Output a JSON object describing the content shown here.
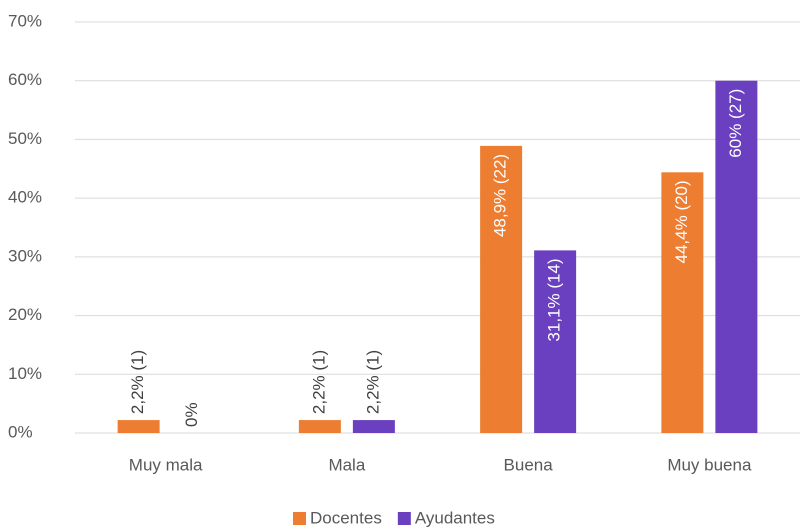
{
  "chart_data": {
    "type": "bar",
    "categories": [
      "Muy mala",
      "Mala",
      "Buena",
      "Muy buena"
    ],
    "series": [
      {
        "name": "Docentes",
        "color": "#ed7d31",
        "values": [
          2.2,
          2.2,
          48.9,
          44.4
        ],
        "value_labels": [
          "2,2% (1)",
          "2,2% (1)",
          "48,9% (22)",
          "44,4% (20)"
        ]
      },
      {
        "name": "Ayudantes",
        "color": "#6a40c0",
        "values": [
          0,
          2.2,
          31.1,
          60
        ],
        "value_labels": [
          "0%",
          "2,2% (1)",
          "31,1% (14)",
          "60% (27)"
        ]
      }
    ],
    "ylim": [
      0,
      70
    ],
    "yticks": [
      {
        "value": 0,
        "label": "0%"
      },
      {
        "value": 10,
        "label": "10%"
      },
      {
        "value": 20,
        "label": "20%"
      },
      {
        "value": 30,
        "label": "30%"
      },
      {
        "value": 40,
        "label": "40%"
      },
      {
        "value": 50,
        "label": "50%"
      },
      {
        "value": 60,
        "label": "60%"
      },
      {
        "value": 70,
        "label": "70%"
      }
    ],
    "grid": true,
    "legend": "bottom"
  }
}
